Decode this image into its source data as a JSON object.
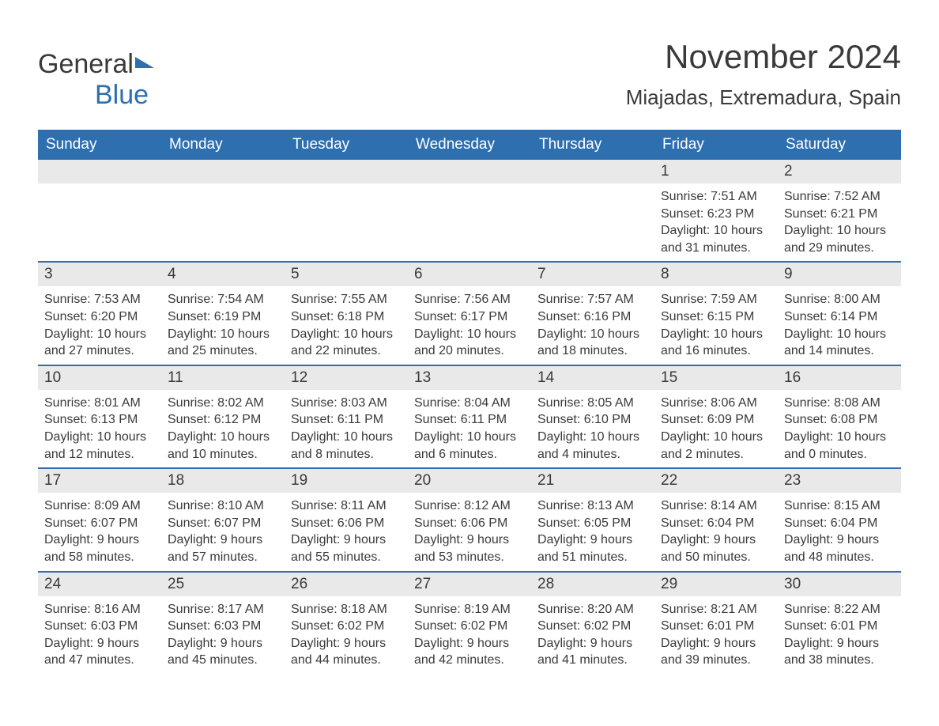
{
  "colors": {
    "brand_blue": "#2e6fb0",
    "header_bg": "#2e6fb0",
    "header_text": "#ffffff",
    "daynum_bg": "#e9e9e9",
    "text": "#3a3a3a",
    "background": "#ffffff",
    "week_divider": "#2e6fb0"
  },
  "typography": {
    "title_fontsize": 42,
    "location_fontsize": 26,
    "dayname_fontsize": 19,
    "daynum_fontsize": 19,
    "body_fontsize": 16,
    "font_family": "Arial"
  },
  "layout": {
    "cols": 7,
    "rows": 5,
    "cell_min_height": 124
  },
  "logo": {
    "part1": "General",
    "part2": "Blue"
  },
  "title": "November 2024",
  "location": "Miajadas, Extremadura, Spain",
  "daynames": [
    "Sunday",
    "Monday",
    "Tuesday",
    "Wednesday",
    "Thursday",
    "Friday",
    "Saturday"
  ],
  "weeks": [
    [
      {
        "blank": true
      },
      {
        "blank": true
      },
      {
        "blank": true
      },
      {
        "blank": true
      },
      {
        "blank": true
      },
      {
        "day": "1",
        "sunrise": "Sunrise: 7:51 AM",
        "sunset": "Sunset: 6:23 PM",
        "daylight1": "Daylight: 10 hours",
        "daylight2": "and 31 minutes."
      },
      {
        "day": "2",
        "sunrise": "Sunrise: 7:52 AM",
        "sunset": "Sunset: 6:21 PM",
        "daylight1": "Daylight: 10 hours",
        "daylight2": "and 29 minutes."
      }
    ],
    [
      {
        "day": "3",
        "sunrise": "Sunrise: 7:53 AM",
        "sunset": "Sunset: 6:20 PM",
        "daylight1": "Daylight: 10 hours",
        "daylight2": "and 27 minutes."
      },
      {
        "day": "4",
        "sunrise": "Sunrise: 7:54 AM",
        "sunset": "Sunset: 6:19 PM",
        "daylight1": "Daylight: 10 hours",
        "daylight2": "and 25 minutes."
      },
      {
        "day": "5",
        "sunrise": "Sunrise: 7:55 AM",
        "sunset": "Sunset: 6:18 PM",
        "daylight1": "Daylight: 10 hours",
        "daylight2": "and 22 minutes."
      },
      {
        "day": "6",
        "sunrise": "Sunrise: 7:56 AM",
        "sunset": "Sunset: 6:17 PM",
        "daylight1": "Daylight: 10 hours",
        "daylight2": "and 20 minutes."
      },
      {
        "day": "7",
        "sunrise": "Sunrise: 7:57 AM",
        "sunset": "Sunset: 6:16 PM",
        "daylight1": "Daylight: 10 hours",
        "daylight2": "and 18 minutes."
      },
      {
        "day": "8",
        "sunrise": "Sunrise: 7:59 AM",
        "sunset": "Sunset: 6:15 PM",
        "daylight1": "Daylight: 10 hours",
        "daylight2": "and 16 minutes."
      },
      {
        "day": "9",
        "sunrise": "Sunrise: 8:00 AM",
        "sunset": "Sunset: 6:14 PM",
        "daylight1": "Daylight: 10 hours",
        "daylight2": "and 14 minutes."
      }
    ],
    [
      {
        "day": "10",
        "sunrise": "Sunrise: 8:01 AM",
        "sunset": "Sunset: 6:13 PM",
        "daylight1": "Daylight: 10 hours",
        "daylight2": "and 12 minutes."
      },
      {
        "day": "11",
        "sunrise": "Sunrise: 8:02 AM",
        "sunset": "Sunset: 6:12 PM",
        "daylight1": "Daylight: 10 hours",
        "daylight2": "and 10 minutes."
      },
      {
        "day": "12",
        "sunrise": "Sunrise: 8:03 AM",
        "sunset": "Sunset: 6:11 PM",
        "daylight1": "Daylight: 10 hours",
        "daylight2": "and 8 minutes."
      },
      {
        "day": "13",
        "sunrise": "Sunrise: 8:04 AM",
        "sunset": "Sunset: 6:11 PM",
        "daylight1": "Daylight: 10 hours",
        "daylight2": "and 6 minutes."
      },
      {
        "day": "14",
        "sunrise": "Sunrise: 8:05 AM",
        "sunset": "Sunset: 6:10 PM",
        "daylight1": "Daylight: 10 hours",
        "daylight2": "and 4 minutes."
      },
      {
        "day": "15",
        "sunrise": "Sunrise: 8:06 AM",
        "sunset": "Sunset: 6:09 PM",
        "daylight1": "Daylight: 10 hours",
        "daylight2": "and 2 minutes."
      },
      {
        "day": "16",
        "sunrise": "Sunrise: 8:08 AM",
        "sunset": "Sunset: 6:08 PM",
        "daylight1": "Daylight: 10 hours",
        "daylight2": "and 0 minutes."
      }
    ],
    [
      {
        "day": "17",
        "sunrise": "Sunrise: 8:09 AM",
        "sunset": "Sunset: 6:07 PM",
        "daylight1": "Daylight: 9 hours",
        "daylight2": "and 58 minutes."
      },
      {
        "day": "18",
        "sunrise": "Sunrise: 8:10 AM",
        "sunset": "Sunset: 6:07 PM",
        "daylight1": "Daylight: 9 hours",
        "daylight2": "and 57 minutes."
      },
      {
        "day": "19",
        "sunrise": "Sunrise: 8:11 AM",
        "sunset": "Sunset: 6:06 PM",
        "daylight1": "Daylight: 9 hours",
        "daylight2": "and 55 minutes."
      },
      {
        "day": "20",
        "sunrise": "Sunrise: 8:12 AM",
        "sunset": "Sunset: 6:06 PM",
        "daylight1": "Daylight: 9 hours",
        "daylight2": "and 53 minutes."
      },
      {
        "day": "21",
        "sunrise": "Sunrise: 8:13 AM",
        "sunset": "Sunset: 6:05 PM",
        "daylight1": "Daylight: 9 hours",
        "daylight2": "and 51 minutes."
      },
      {
        "day": "22",
        "sunrise": "Sunrise: 8:14 AM",
        "sunset": "Sunset: 6:04 PM",
        "daylight1": "Daylight: 9 hours",
        "daylight2": "and 50 minutes."
      },
      {
        "day": "23",
        "sunrise": "Sunrise: 8:15 AM",
        "sunset": "Sunset: 6:04 PM",
        "daylight1": "Daylight: 9 hours",
        "daylight2": "and 48 minutes."
      }
    ],
    [
      {
        "day": "24",
        "sunrise": "Sunrise: 8:16 AM",
        "sunset": "Sunset: 6:03 PM",
        "daylight1": "Daylight: 9 hours",
        "daylight2": "and 47 minutes."
      },
      {
        "day": "25",
        "sunrise": "Sunrise: 8:17 AM",
        "sunset": "Sunset: 6:03 PM",
        "daylight1": "Daylight: 9 hours",
        "daylight2": "and 45 minutes."
      },
      {
        "day": "26",
        "sunrise": "Sunrise: 8:18 AM",
        "sunset": "Sunset: 6:02 PM",
        "daylight1": "Daylight: 9 hours",
        "daylight2": "and 44 minutes."
      },
      {
        "day": "27",
        "sunrise": "Sunrise: 8:19 AM",
        "sunset": "Sunset: 6:02 PM",
        "daylight1": "Daylight: 9 hours",
        "daylight2": "and 42 minutes."
      },
      {
        "day": "28",
        "sunrise": "Sunrise: 8:20 AM",
        "sunset": "Sunset: 6:02 PM",
        "daylight1": "Daylight: 9 hours",
        "daylight2": "and 41 minutes."
      },
      {
        "day": "29",
        "sunrise": "Sunrise: 8:21 AM",
        "sunset": "Sunset: 6:01 PM",
        "daylight1": "Daylight: 9 hours",
        "daylight2": "and 39 minutes."
      },
      {
        "day": "30",
        "sunrise": "Sunrise: 8:22 AM",
        "sunset": "Sunset: 6:01 PM",
        "daylight1": "Daylight: 9 hours",
        "daylight2": "and 38 minutes."
      }
    ]
  ]
}
